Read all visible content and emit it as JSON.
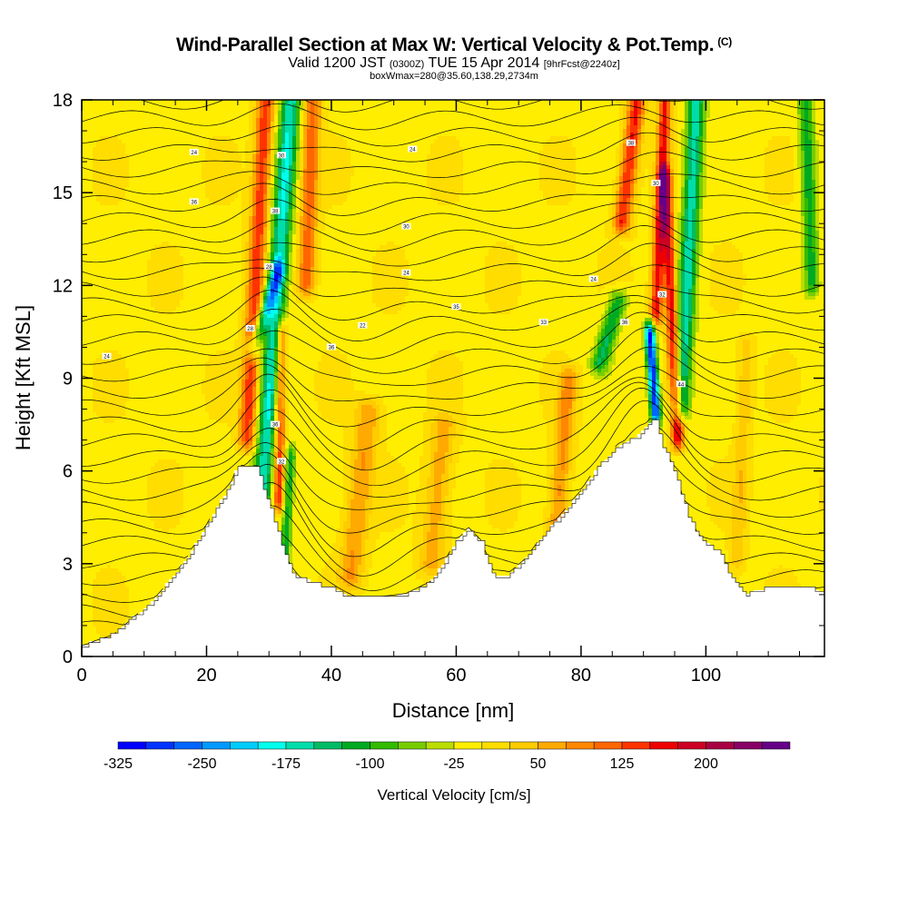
{
  "title": {
    "main": "Wind-Parallel Section at Max W: Vertical Velocity & Pot.Temp.",
    "copyright": "(C)",
    "valid_prefix": "Valid 1200 JST",
    "valid_utc": "(0300Z)",
    "valid_date": "TUE 15 Apr 2014",
    "forecast": "[9hrFcst@2240z]",
    "box_info": "boxWmax=280@35.60,138.29,2734m"
  },
  "chart_data": {
    "type": "heatmap",
    "xlabel": "Distance [nm]",
    "ylabel": "Height [Kft MSL]",
    "xlim": [
      0,
      119
    ],
    "ylim": [
      0,
      18
    ],
    "x_ticks": [
      0,
      20,
      40,
      60,
      80,
      100
    ],
    "y_ticks": [
      0,
      3,
      6,
      9,
      12,
      15,
      18
    ],
    "colorbar": {
      "title": "Vertical Velocity [cm/s]",
      "tick_labels": [
        "-325",
        "-250",
        "-175",
        "-100",
        "-25",
        "50",
        "125",
        "200"
      ],
      "tick_values": [
        -325,
        -250,
        -175,
        -100,
        -25,
        50,
        125,
        200
      ],
      "bins": [
        -325,
        -300,
        -275,
        -250,
        -225,
        -200,
        -175,
        -150,
        -125,
        -100,
        -75,
        -50,
        -25,
        0,
        25,
        50,
        75,
        100,
        125,
        150,
        175,
        200,
        225,
        250
      ],
      "colors": [
        "#0000ff",
        "#0033ff",
        "#0066ff",
        "#0099ff",
        "#00ccff",
        "#00ffee",
        "#00ddaa",
        "#00bb66",
        "#00aa22",
        "#33bb00",
        "#77cc00",
        "#bbdd00",
        "#ffee00",
        "#ffdd00",
        "#ffcc00",
        "#ffaa00",
        "#ff8800",
        "#ff6600",
        "#ff3300",
        "#ee0000",
        "#cc0022",
        "#aa0044",
        "#880066",
        "#660088"
      ]
    },
    "terrain": [
      [
        0,
        0.3
      ],
      [
        2,
        0.5
      ],
      [
        5,
        0.7
      ],
      [
        8,
        1.2
      ],
      [
        11,
        1.7
      ],
      [
        14,
        2.4
      ],
      [
        17,
        3.2
      ],
      [
        20,
        4.2
      ],
      [
        22,
        4.9
      ],
      [
        24,
        5.6
      ],
      [
        25,
        6.1
      ],
      [
        28,
        6.1
      ],
      [
        30,
        4.9
      ],
      [
        32,
        3.6
      ],
      [
        34,
        2.6
      ],
      [
        37,
        2.4
      ],
      [
        40,
        2.2
      ],
      [
        43,
        1.9
      ],
      [
        48,
        1.9
      ],
      [
        52,
        2.0
      ],
      [
        56,
        2.4
      ],
      [
        58,
        3.0
      ],
      [
        60,
        3.7
      ],
      [
        62,
        4.1
      ],
      [
        64,
        3.7
      ],
      [
        66,
        2.6
      ],
      [
        68,
        2.6
      ],
      [
        71,
        3.1
      ],
      [
        74,
        3.9
      ],
      [
        77,
        4.6
      ],
      [
        80,
        5.3
      ],
      [
        83,
        6.2
      ],
      [
        86,
        6.8
      ],
      [
        89,
        7.1
      ],
      [
        91,
        7.6
      ],
      [
        92,
        7.6
      ],
      [
        93,
        6.8
      ],
      [
        95,
        6.0
      ],
      [
        97,
        4.6
      ],
      [
        99,
        3.8
      ],
      [
        102,
        3.4
      ],
      [
        104,
        2.6
      ],
      [
        106,
        2.0
      ],
      [
        108,
        2.1
      ],
      [
        111,
        2.3
      ],
      [
        114,
        2.2
      ],
      [
        117,
        2.2
      ],
      [
        119,
        2.0
      ]
    ],
    "velocity_features": [
      {
        "x0": 28.5,
        "x1": 33.5,
        "yb": 4.0,
        "yt": 18,
        "v": -170,
        "w": 1.6
      },
      {
        "x0": 26.5,
        "x1": 29.5,
        "yb": 7.0,
        "yt": 18,
        "v": 150,
        "w": 1.4
      },
      {
        "x0": 27.5,
        "x1": 31.5,
        "yb": 10.0,
        "yt": 12.5,
        "v": -150,
        "w": 1.1
      },
      {
        "x0": 31.5,
        "x1": 32.0,
        "yb": 5.0,
        "yt": 10.5,
        "v": 150,
        "w": 0.9
      },
      {
        "x0": 32.5,
        "x1": 33.5,
        "yb": 3.0,
        "yt": 6.5,
        "v": -120,
        "w": 0.8
      },
      {
        "x0": 36.0,
        "x1": 37.0,
        "yb": 12.0,
        "yt": 18,
        "v": 120,
        "w": 1.4
      },
      {
        "x0": 43.0,
        "x1": 46.0,
        "yb": 2.5,
        "yt": 8.0,
        "v": 80,
        "w": 2.0
      },
      {
        "x0": 56.0,
        "x1": 58.0,
        "yb": 3.0,
        "yt": 7.5,
        "v": 70,
        "w": 2.0
      },
      {
        "x0": 76.0,
        "x1": 78.0,
        "yb": 4.0,
        "yt": 9.0,
        "v": 90,
        "w": 1.5
      },
      {
        "x0": 86.5,
        "x1": 89.0,
        "yb": 14.0,
        "yt": 18,
        "v": 160,
        "w": 1.4
      },
      {
        "x0": 83.0,
        "x1": 86.0,
        "yb": 9.5,
        "yt": 11.5,
        "v": -120,
        "w": 1.5
      },
      {
        "x0": 92.0,
        "x1": 91.0,
        "yb": 7.8,
        "yt": 10.5,
        "v": -300,
        "w": 0.8
      },
      {
        "x0": 95.5,
        "x1": 93.5,
        "yb": 7.0,
        "yt": 15.5,
        "v": 180,
        "w": 1.0
      },
      {
        "x0": 96.0,
        "x1": 98.5,
        "yb": 8.0,
        "yt": 18,
        "v": -160,
        "w": 1.4
      },
      {
        "x0": 92.0,
        "x1": 93.5,
        "yb": 11.0,
        "yt": 18,
        "v": 170,
        "w": 1.0
      },
      {
        "x0": 117.0,
        "x1": 116.0,
        "yb": 12.0,
        "yt": 18,
        "v": -110,
        "w": 1.2
      },
      {
        "x0": 105.0,
        "x1": 106.5,
        "yb": 3.0,
        "yt": 10.0,
        "v": 50,
        "w": 1.2
      }
    ],
    "isentrope_labels": [
      "24",
      "30",
      "36",
      "38",
      "24",
      "30",
      "28",
      "24",
      "24",
      "38",
      "30",
      "22",
      "35",
      "33",
      "36",
      "24",
      "28",
      "36",
      "36",
      "32",
      "32",
      "44"
    ]
  }
}
